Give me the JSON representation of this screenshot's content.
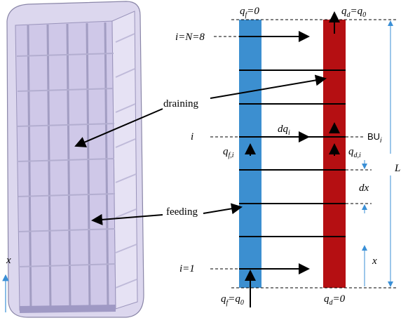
{
  "labels": {
    "qf_top": {
      "main": "q",
      "sub": "f",
      "tail": "=0"
    },
    "qd_top": {
      "main": "q",
      "sub": "d",
      "tail": "=q",
      "tail_sub": "0"
    },
    "i_top": "i=N=8",
    "draining": "draining",
    "i_mid": "i",
    "dq": {
      "main": "dq",
      "sub": "i"
    },
    "bu": {
      "main": "BU",
      "sub": "i"
    },
    "qfi": {
      "main": "q",
      "sub": "f,i"
    },
    "qdi": {
      "main": "q",
      "sub": "d,i"
    },
    "L": "L",
    "dx": "dx",
    "feeding": "feeding",
    "x_right": "x",
    "x_left": "x",
    "i_bottom": "i=1",
    "qf_bottom": {
      "main": "q",
      "sub": "f",
      "tail": "=q",
      "tail_sub": "0"
    },
    "qd_bottom": {
      "main": "q",
      "sub": "d",
      "tail": "=0"
    }
  }
}
